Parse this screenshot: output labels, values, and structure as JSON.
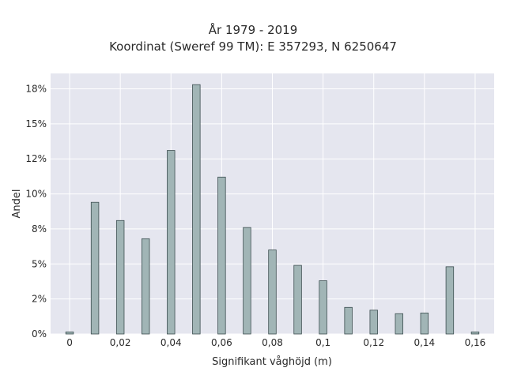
{
  "chart_data": {
    "type": "bar",
    "title_lines": [
      "År 1979 - 2019",
      "Koordinat (Sweref 99 TM): E 357293, N 6250647"
    ],
    "xlabel": "Signifikant våghöjd (m)",
    "ylabel": "Andel",
    "x_ticks": [
      {
        "value": 0,
        "label": "0"
      },
      {
        "value": 0.02,
        "label": "0,02"
      },
      {
        "value": 0.04,
        "label": "0,04"
      },
      {
        "value": 0.06,
        "label": "0,06"
      },
      {
        "value": 0.08,
        "label": "0,08"
      },
      {
        "value": 0.1,
        "label": "0,1"
      },
      {
        "value": 0.12,
        "label": "0,12"
      },
      {
        "value": 0.14,
        "label": "0,14"
      },
      {
        "value": 0.16,
        "label": "0,16"
      }
    ],
    "y_ticks": [
      {
        "value": 0,
        "label": "0%"
      },
      {
        "value": 0.025,
        "label": "2%"
      },
      {
        "value": 0.05,
        "label": "5%"
      },
      {
        "value": 0.075,
        "label": "8%"
      },
      {
        "value": 0.1,
        "label": "10%"
      },
      {
        "value": 0.125,
        "label": "12%"
      },
      {
        "value": 0.15,
        "label": "15%"
      },
      {
        "value": 0.175,
        "label": "18%"
      }
    ],
    "xlim": [
      -0.0075,
      0.1675
    ],
    "ylim": [
      0,
      0.186
    ],
    "bar_width": 0.003,
    "x": [
      0,
      0.01,
      0.02,
      0.03,
      0.04,
      0.05,
      0.06,
      0.07,
      0.08,
      0.09,
      0.1,
      0.11,
      0.12,
      0.13,
      0.14,
      0.15,
      0.16
    ],
    "values": [
      0.0015,
      0.094,
      0.081,
      0.068,
      0.131,
      0.178,
      0.112,
      0.076,
      0.06,
      0.049,
      0.038,
      0.019,
      0.017,
      0.0145,
      0.015,
      0.048,
      0.0015
    ],
    "grid": true,
    "legend": "none",
    "colors": {
      "plot_bg": "#e5e6ef",
      "grid": "#ffffff",
      "bar_fill": "#a1b5b6",
      "bar_stroke": "#3c4e50",
      "text": "#2a2a2a"
    }
  }
}
